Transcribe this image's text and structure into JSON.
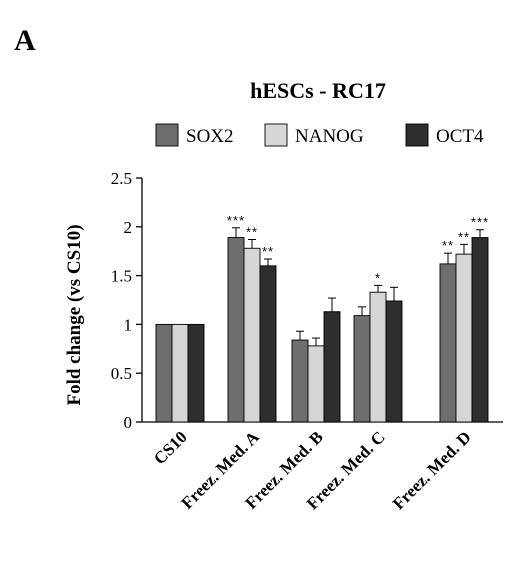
{
  "panel_label": "A",
  "chart_data": {
    "type": "bar",
    "title": "hESCs - RC17",
    "xlabel": "",
    "ylabel": "Fold change (vs CS10)",
    "ylim": [
      0,
      2.5
    ],
    "yticks": [
      "0",
      "0.5",
      "1",
      "1.5",
      "2",
      "2.5"
    ],
    "ytick_values": [
      0,
      0.5,
      1,
      1.5,
      2,
      2.5
    ],
    "grid": false,
    "legend": "top",
    "categories": [
      "CS10",
      "Freez. Med. A",
      "Freez. Med. B",
      "Freez. Med. C",
      "Freez. Med. D"
    ],
    "series": [
      {
        "name": "SOX2",
        "color": "#6e6e6e",
        "values": [
          1.0,
          1.89,
          0.84,
          1.09,
          1.62
        ],
        "errors": [
          0.0,
          0.1,
          0.09,
          0.09,
          0.11
        ],
        "significance": [
          "",
          "***",
          "",
          "",
          "**"
        ]
      },
      {
        "name": "NANOG",
        "color": "#d6d6d6",
        "values": [
          1.0,
          1.78,
          0.78,
          1.33,
          1.72
        ],
        "errors": [
          0.0,
          0.09,
          0.08,
          0.07,
          0.1
        ],
        "significance": [
          "",
          "**",
          "",
          "*",
          "**"
        ]
      },
      {
        "name": "OCT4",
        "color": "#2e2e2e",
        "values": [
          1.0,
          1.6,
          1.13,
          1.24,
          1.89
        ],
        "errors": [
          0.0,
          0.07,
          0.14,
          0.14,
          0.08
        ],
        "significance": [
          "",
          "**",
          "",
          "",
          "***"
        ]
      }
    ]
  }
}
